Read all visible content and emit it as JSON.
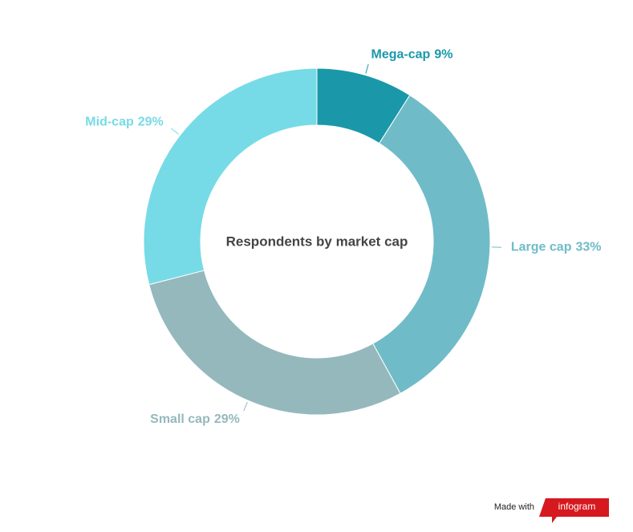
{
  "chart_data": {
    "type": "donut",
    "title": "Respondents by market cap",
    "categories": [
      "Mega-cap",
      "Large cap",
      "Small cap",
      "Mid-cap"
    ],
    "values": [
      9,
      33,
      29,
      29
    ],
    "value_labels": [
      "9%",
      "33%",
      "29%",
      "29%"
    ],
    "colors": [
      "#1a98a9",
      "#6fbcc8",
      "#95b8bd",
      "#76dbe6"
    ]
  },
  "footer": {
    "made_with": "Made with",
    "brand": "infogram"
  }
}
